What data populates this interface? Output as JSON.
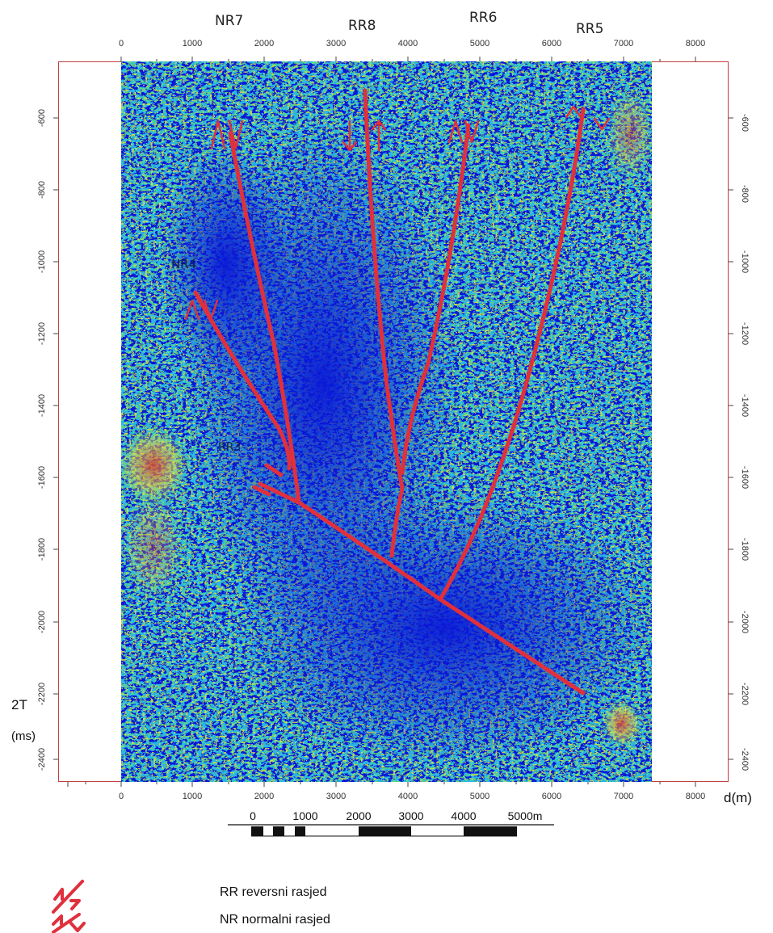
{
  "faults": {
    "top_labels": [
      {
        "id": "nr7",
        "text": "NR7"
      },
      {
        "id": "rr8",
        "text": "RR8"
      },
      {
        "id": "rr6",
        "text": "RR6"
      },
      {
        "id": "rr5",
        "text": "RR5"
      }
    ],
    "inner_labels": [
      {
        "id": "nr4",
        "text": "NR4"
      },
      {
        "id": "rr3",
        "text": "RR3"
      }
    ]
  },
  "x_axis": {
    "ticks": [
      "0",
      "1000",
      "2000",
      "3000",
      "4000",
      "5000",
      "6000",
      "7000",
      "8000"
    ],
    "unit_label": "d(m)"
  },
  "y_axis": {
    "ticks": [
      "-600",
      "-800",
      "-1000",
      "-1200",
      "-1400",
      "-1600",
      "-1800",
      "-2000",
      "-2200",
      "-2400"
    ],
    "label_line1": "2T",
    "label_line2": "(ms)"
  },
  "scale_bar": {
    "labels": [
      "0",
      "1000",
      "2000",
      "3000",
      "4000",
      "5000m"
    ]
  },
  "legend": [
    {
      "symbol": "reverse-fault-symbol",
      "text": "RR reversni rasjed"
    },
    {
      "symbol": "normal-fault-symbol",
      "text": "NR normalni rasjed"
    }
  ],
  "colors": {
    "fault_line": "#e0303c",
    "seismic_bg": "#0a18d8",
    "attribute_cyan": "#2ec8e6",
    "attribute_green": "#6ee06a",
    "attribute_yellow": "#f2e23a",
    "attribute_red": "#e23a2a"
  }
}
